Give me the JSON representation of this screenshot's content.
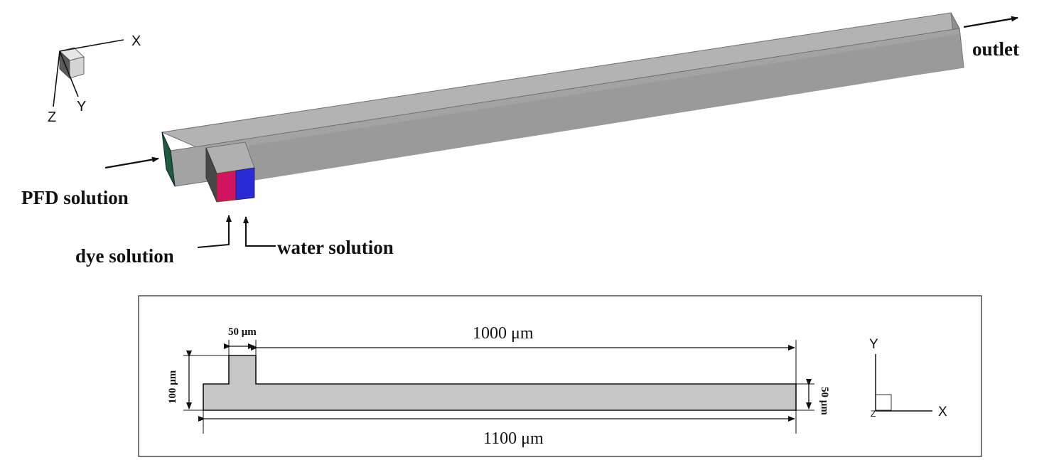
{
  "colors": {
    "channel_top": "#b3b3b3",
    "channel_front": "#a6a6a6",
    "channel_side": "#969696",
    "channel_dark": "#4a4a4a",
    "inlet_pfd": "#1e5a3c",
    "inlet_dye": "#d0145e",
    "inlet_water": "#2a2ad6",
    "plan_fill": "#c6c6c6",
    "ink": "#111111"
  },
  "iso_axes": {
    "x": "X",
    "y": "Y",
    "z": "Z"
  },
  "labels_3d": {
    "outlet": "outlet",
    "pfd": "PFD solution",
    "dye": "dye solution",
    "water": "water solution"
  },
  "plan_view": {
    "dim_inlet_width": "50 μm",
    "dim_main_length": "1000 μm",
    "dim_total_height": "100 μm",
    "dim_channel_width": "50 μm",
    "dim_total_length": "1100 μm"
  },
  "axes_2d": {
    "y": "Y",
    "x": "X",
    "z": "Z"
  }
}
